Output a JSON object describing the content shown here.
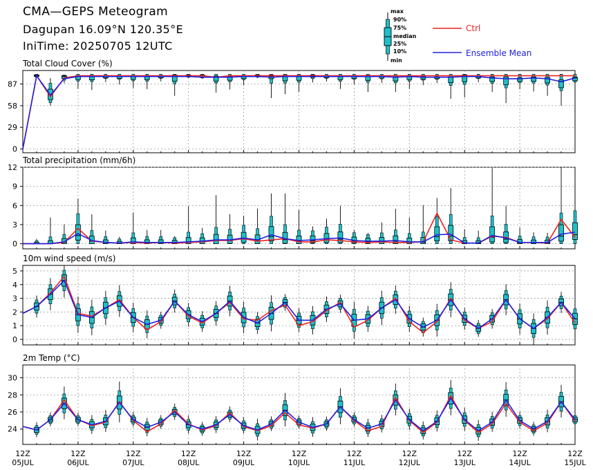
{
  "header": {
    "title": "CMA—GEPS Meteogram",
    "location": "Dagupan 16.09°N 120.35°E",
    "init": "IniTime: 20250705 12UTC"
  },
  "legend": {
    "ctrl": "Ctrl",
    "mean": "Ensemble Mean",
    "key_labels": [
      "max",
      "90%",
      "75%",
      "median",
      "25%",
      "10%",
      "min"
    ]
  },
  "colors": {
    "ctrl": "#ee2020",
    "mean": "#2020e0",
    "box": "#20c0c8",
    "grid": "#9a9a9a"
  },
  "x_axis": {
    "labels": [
      {
        "hour": "12Z",
        "date": "05JUL"
      },
      {
        "hour": "12Z",
        "date": "06JUL"
      },
      {
        "hour": "12Z",
        "date": "07JUL"
      },
      {
        "hour": "12Z",
        "date": "08JUL"
      },
      {
        "hour": "12Z",
        "date": "09JUL"
      },
      {
        "hour": "12Z",
        "date": "10JUL"
      },
      {
        "hour": "12Z",
        "date": "11JUL"
      },
      {
        "hour": "12Z",
        "date": "12JUL"
      },
      {
        "hour": "12Z",
        "date": "13JUL"
      },
      {
        "hour": "12Z",
        "date": "14JUL"
      },
      {
        "hour": "12Z",
        "date": "15JUL"
      }
    ]
  },
  "chart_data": [
    {
      "type": "box-line",
      "title": "Total Cloud Cover (%)",
      "yticks": [
        0,
        29,
        58,
        87
      ],
      "ylim": [
        -5,
        105
      ],
      "ctrl": [
        0,
        98,
        70,
        95,
        98,
        98,
        98,
        98,
        98,
        98,
        98,
        98,
        98,
        98,
        96,
        98,
        98,
        98,
        98,
        98,
        98,
        98,
        98,
        98,
        98,
        98,
        98,
        98,
        98,
        98,
        98,
        98,
        98,
        98,
        98,
        98,
        98,
        98,
        98,
        98,
        98
      ],
      "mean": [
        0,
        98,
        72,
        94,
        97,
        97,
        97,
        97,
        97,
        97,
        97,
        97,
        97,
        96,
        96,
        96,
        97,
        97,
        96,
        97,
        97,
        97,
        97,
        97,
        97,
        97,
        97,
        96,
        97,
        96,
        96,
        96,
        97,
        97,
        95,
        94,
        94,
        95,
        94,
        90,
        95
      ],
      "boxes": [
        [
          null,
          null,
          null,
          null,
          null,
          null,
          null
        ],
        [
          95,
          96,
          97,
          98,
          99,
          100,
          100
        ],
        [
          58,
          62,
          66,
          73,
          80,
          88,
          95
        ],
        [
          88,
          92,
          94,
          97,
          98,
          99,
          99
        ],
        [
          null,
          null,
          null,
          null,
          null,
          null,
          null
        ],
        [
          null,
          null,
          null,
          null,
          null,
          null,
          null
        ],
        [
          null,
          null,
          null,
          null,
          null,
          null,
          null
        ],
        [
          null,
          null,
          null,
          null,
          null,
          null,
          null
        ],
        [
          null,
          null,
          null,
          null,
          null,
          null,
          null
        ],
        [
          null,
          null,
          null,
          null,
          null,
          null,
          null
        ],
        [
          null,
          null,
          null,
          null,
          null,
          null,
          null
        ],
        [
          null,
          null,
          null,
          null,
          null,
          null,
          null
        ],
        [
          95,
          96,
          97,
          98,
          99,
          100,
          100
        ],
        [
          94,
          95,
          96,
          98,
          99,
          100,
          100
        ],
        [
          null,
          null,
          null,
          null,
          null,
          null,
          null
        ],
        [
          null,
          null,
          null,
          null,
          null,
          null,
          null
        ],
        [
          null,
          null,
          null,
          null,
          null,
          null,
          null
        ],
        [
          95,
          96,
          97,
          98,
          99,
          100,
          100
        ],
        [
          68,
          88,
          94,
          97,
          99,
          100,
          100
        ],
        [
          null,
          null,
          null,
          null,
          null,
          null,
          null
        ],
        [
          null,
          null,
          null,
          null,
          null,
          null,
          null
        ],
        [
          89,
          94,
          96,
          98,
          99,
          100,
          100
        ],
        [
          null,
          null,
          null,
          null,
          null,
          null,
          null
        ],
        [
          null,
          null,
          null,
          null,
          null,
          null,
          null
        ],
        [
          null,
          null,
          null,
          null,
          null,
          null,
          null
        ],
        [
          null,
          null,
          null,
          null,
          null,
          null,
          null
        ],
        [
          null,
          null,
          null,
          null,
          null,
          null,
          null
        ],
        [
          null,
          null,
          null,
          null,
          null,
          null,
          null
        ],
        [
          null,
          null,
          null,
          null,
          null,
          null,
          null
        ],
        [
          null,
          null,
          null,
          null,
          null,
          null,
          null
        ],
        [
          null,
          null,
          null,
          null,
          null,
          null,
          null
        ],
        [
          null,
          null,
          null,
          null,
          null,
          null,
          null
        ],
        [
          null,
          null,
          null,
          null,
          null,
          null,
          null
        ],
        [
          null,
          null,
          null,
          null,
          null,
          null,
          null
        ],
        [
          null,
          null,
          null,
          null,
          null,
          null,
          null
        ],
        [
          null,
          null,
          null,
          null,
          null,
          null,
          null
        ],
        [
          null,
          null,
          null,
          null,
          null,
          null,
          null
        ],
        [
          null,
          null,
          null,
          null,
          null,
          null,
          null
        ],
        [
          null,
          null,
          null,
          null,
          null,
          null,
          null
        ],
        [
          null,
          null,
          null,
          null,
          null,
          null,
          null
        ],
        [
          null,
          null,
          null,
          null,
          null,
          null,
          null
        ]
      ]
    },
    {
      "type": "box-line",
      "title": "Total precipitation (mm/6h)",
      "yticks": [
        0,
        3,
        6,
        9,
        12
      ],
      "ylim": [
        -0.8,
        12
      ],
      "ctrl": [
        0,
        0,
        0,
        0.2,
        2.4,
        0.4,
        0.2,
        0.1,
        0.2,
        0.1,
        0.2,
        0.1,
        0.2,
        0.3,
        0.5,
        0.5,
        0.8,
        0.4,
        0.6,
        0.8,
        0.3,
        0.3,
        0.6,
        0.5,
        0.3,
        0.2,
        0.3,
        0.2,
        0.2,
        0.3,
        4.8,
        0.6,
        0.1,
        0.1,
        1.2,
        1.0,
        0.2,
        0.2,
        0.1,
        3.8,
        1.0
      ],
      "mean": [
        0,
        0,
        0,
        0.3,
        1.6,
        0.5,
        0.2,
        0.1,
        0.3,
        0.2,
        0.2,
        0.2,
        0.3,
        0.4,
        0.6,
        0.6,
        0.9,
        0.6,
        1.4,
        0.8,
        0.5,
        0.6,
        0.8,
        0.9,
        0.5,
        0.4,
        0.4,
        0.5,
        0.3,
        0.3,
        1.4,
        1.5,
        0.1,
        0.1,
        1.3,
        0.9,
        0.2,
        0.2,
        0.2,
        1.5,
        1.8
      ]
    },
    {
      "type": "box-line",
      "title": "10m wind speed (m/s)",
      "yticks": [
        0,
        1,
        2,
        3,
        4,
        5
      ],
      "ylim": [
        -0.4,
        5.4
      ],
      "ctrl": [
        1.9,
        2.4,
        3.4,
        4.6,
        1.9,
        1.7,
        2.3,
        2.9,
        1.6,
        0.7,
        1.3,
        2.8,
        1.7,
        1.2,
        1.9,
        2.7,
        1.5,
        1.4,
        2.1,
        2.5,
        1.0,
        1.3,
        2.1,
        2.7,
        0.9,
        1.4,
        2.3,
        3.0,
        1.3,
        0.5,
        1.3,
        3.0,
        1.4,
        0.8,
        1.3,
        2.9,
        1.5,
        0.8,
        1.5,
        2.7,
        1.2
      ],
      "mean": [
        1.9,
        2.4,
        3.3,
        4.3,
        1.8,
        1.6,
        2.3,
        2.8,
        1.6,
        1.1,
        1.4,
        2.8,
        1.8,
        1.3,
        1.9,
        2.8,
        1.6,
        1.2,
        1.9,
        2.7,
        1.4,
        1.4,
        2.2,
        2.6,
        1.4,
        1.5,
        2.3,
        2.9,
        1.5,
        0.9,
        1.4,
        2.9,
        1.5,
        0.8,
        1.5,
        2.9,
        1.5,
        0.8,
        1.6,
        2.7,
        1.5
      ]
    },
    {
      "type": "box-line",
      "title": "2m Temp (°C)",
      "yticks": [
        24,
        26,
        28,
        30
      ],
      "ylim": [
        22.2,
        31.5
      ],
      "ctrl": [
        24.3,
        23.9,
        25.1,
        27.4,
        25.1,
        24.4,
        24.8,
        27.2,
        25.0,
        23.7,
        24.6,
        26.2,
        24.6,
        23.9,
        24.4,
        25.9,
        24.3,
        23.8,
        24.4,
        25.9,
        24.5,
        24.1,
        24.6,
        26.6,
        25.0,
        23.8,
        24.3,
        27.7,
        25.0,
        23.6,
        24.8,
        27.9,
        25.0,
        23.6,
        24.6,
        27.0,
        24.8,
        23.8,
        24.7,
        27.2,
        24.9
      ],
      "mean": [
        24.3,
        23.9,
        25.1,
        27.0,
        25.1,
        24.5,
        24.9,
        27.1,
        25.1,
        24.2,
        24.8,
        26.0,
        24.5,
        24.0,
        24.5,
        25.7,
        24.4,
        23.9,
        24.6,
        26.2,
        24.8,
        24.2,
        24.6,
        26.6,
        25.1,
        24.1,
        24.6,
        27.4,
        25.1,
        23.8,
        24.9,
        27.6,
        25.1,
        23.8,
        24.8,
        27.4,
        25.0,
        24.0,
        24.9,
        27.2,
        25.1
      ]
    }
  ]
}
